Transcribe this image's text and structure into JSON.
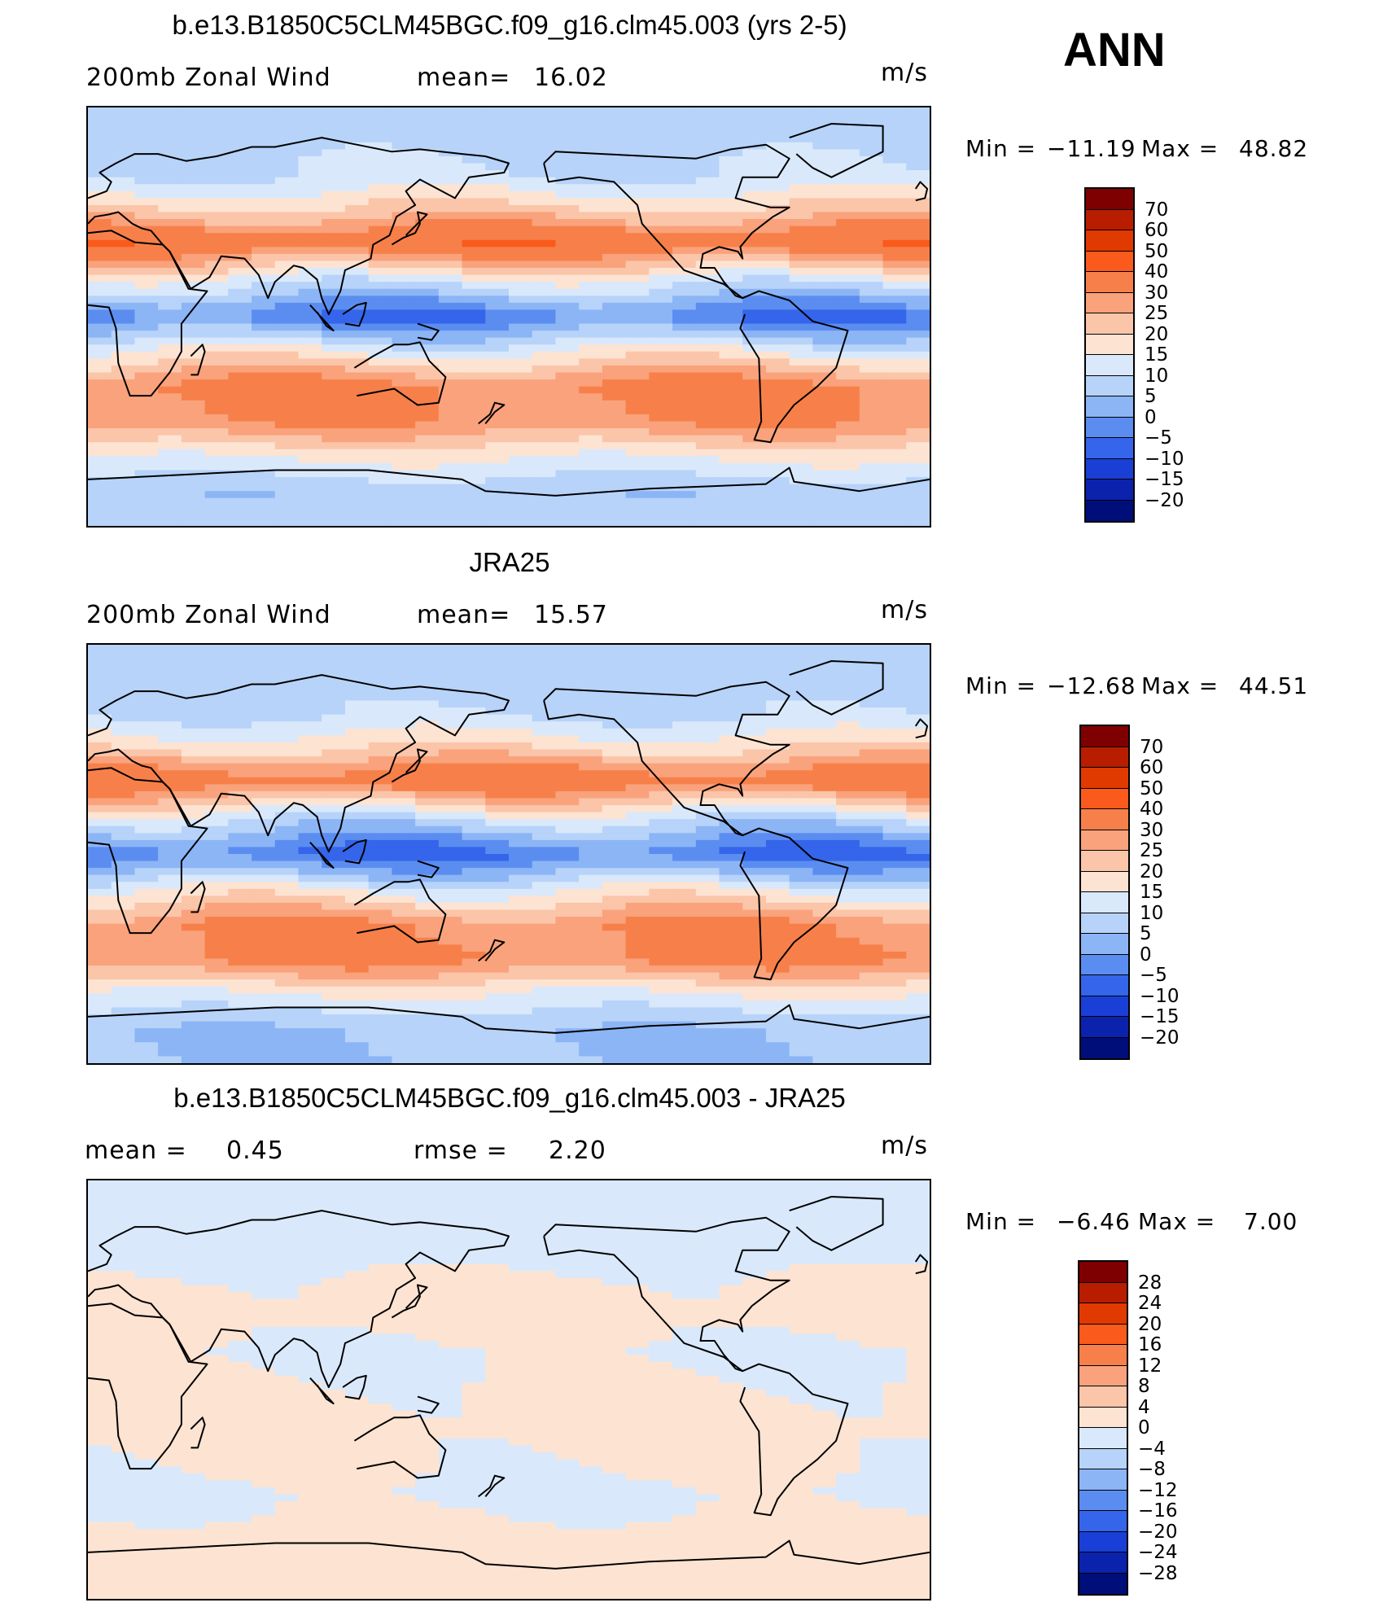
{
  "header": {
    "season": "ANN"
  },
  "panels": [
    {
      "title": "b.e13.B1850C5CLM45BGC.f09_g16.clm45.003 (yrs 2-5)",
      "left_label": "200mb Zonal Wind",
      "mid_label": "mean=",
      "mid_value": "16.02",
      "units": "m/s",
      "min_label": "Min =",
      "min_value": "−11.19",
      "max_label": "Max =",
      "max_value": "48.82",
      "type": "abs"
    },
    {
      "title": "JRA25",
      "left_label": "200mb Zonal Wind",
      "mid_label": "mean=",
      "mid_value": "15.57",
      "units": "m/s",
      "min_label": "Min =",
      "min_value": "−12.68",
      "max_label": "Max =",
      "max_value": "44.51",
      "type": "abs"
    },
    {
      "title": "b.e13.B1850C5CLM45BGC.f09_g16.clm45.003 - JRA25",
      "left_label": "mean =",
      "left_value": "0.45",
      "mid_label": "rmse =",
      "mid_value": "2.20",
      "units": "m/s",
      "min_label": "Min =",
      "min_value": "−6.46",
      "max_label": "Max =",
      "max_value": "7.00",
      "type": "diff"
    }
  ],
  "colorbars": {
    "abs": {
      "labels": [
        "70",
        "60",
        "50",
        "40",
        "30",
        "25",
        "20",
        "15",
        "10",
        "5",
        "0",
        "−5",
        "−10",
        "−15",
        "−20"
      ],
      "colors": [
        "#7f0000",
        "#b81d00",
        "#e03a00",
        "#fa5a1c",
        "#f7804a",
        "#f9a27c",
        "#fbc5a9",
        "#fde3d2",
        "#d9e9fb",
        "#b7d3f9",
        "#8cb5f6",
        "#5b8df1",
        "#3465ea",
        "#1a3fd6",
        "#0b22ad",
        "#000e7a"
      ]
    },
    "diff": {
      "labels": [
        "28",
        "24",
        "20",
        "16",
        "12",
        "8",
        "4",
        "0",
        "−4",
        "−8",
        "−12",
        "−16",
        "−20",
        "−24",
        "−28"
      ],
      "colors": [
        "#7f0000",
        "#b81d00",
        "#e03a00",
        "#fa5a1c",
        "#f7804a",
        "#f9a27c",
        "#fbc5a9",
        "#fde3d2",
        "#d9e9fb",
        "#b7d3f9",
        "#8cb5f6",
        "#5b8df1",
        "#3465ea",
        "#1a3fd6",
        "#0b22ad",
        "#000e7a"
      ]
    }
  },
  "chart_data": [
    {
      "type": "heatmap",
      "field": "200mb Zonal Wind",
      "units": "m/s",
      "mean": 16.02,
      "min": -11.19,
      "max": 48.82,
      "contour_levels": [
        -20,
        -15,
        -10,
        -5,
        0,
        5,
        10,
        15,
        20,
        25,
        30,
        40,
        50,
        60,
        70
      ],
      "zonal_bands": [
        {
          "lat": 80,
          "value": 8
        },
        {
          "lat": 60,
          "value": 10
        },
        {
          "lat": 45,
          "value": 22
        },
        {
          "lat": 32,
          "value": 38
        },
        {
          "lat": 15,
          "value": 12
        },
        {
          "lat": 0,
          "value": -5
        },
        {
          "lat": -15,
          "value": 15
        },
        {
          "lat": -30,
          "value": 32
        },
        {
          "lat": -45,
          "value": 30
        },
        {
          "lat": -60,
          "value": 16
        },
        {
          "lat": -75,
          "value": 6
        }
      ]
    },
    {
      "type": "heatmap",
      "field": "200mb Zonal Wind",
      "units": "m/s",
      "mean": 15.57,
      "min": -12.68,
      "max": 44.51,
      "contour_levels": [
        -20,
        -15,
        -10,
        -5,
        0,
        5,
        10,
        15,
        20,
        25,
        30,
        40,
        50,
        60,
        70
      ],
      "zonal_bands": [
        {
          "lat": 80,
          "value": 6
        },
        {
          "lat": 60,
          "value": 9
        },
        {
          "lat": 45,
          "value": 20
        },
        {
          "lat": 32,
          "value": 36
        },
        {
          "lat": 15,
          "value": 10
        },
        {
          "lat": 0,
          "value": -6
        },
        {
          "lat": -15,
          "value": 14
        },
        {
          "lat": -30,
          "value": 30
        },
        {
          "lat": -45,
          "value": 32
        },
        {
          "lat": -60,
          "value": 15
        },
        {
          "lat": -75,
          "value": 5
        }
      ]
    },
    {
      "type": "heatmap",
      "field": "difference",
      "units": "m/s",
      "mean": 0.45,
      "rmse": 2.2,
      "min": -6.46,
      "max": 7.0,
      "contour_levels": [
        -28,
        -24,
        -20,
        -16,
        -12,
        -8,
        -4,
        0,
        4,
        8,
        12,
        16,
        20,
        24,
        28
      ],
      "zonal_bands": [
        {
          "lat": 80,
          "value": -1
        },
        {
          "lat": 60,
          "value": -2
        },
        {
          "lat": 45,
          "value": 1
        },
        {
          "lat": 30,
          "value": 2
        },
        {
          "lat": 15,
          "value": -1
        },
        {
          "lat": 0,
          "value": 1
        },
        {
          "lat": -15,
          "value": 2
        },
        {
          "lat": -30,
          "value": 1
        },
        {
          "lat": -45,
          "value": -1
        },
        {
          "lat": -60,
          "value": 1
        },
        {
          "lat": -75,
          "value": 2
        }
      ]
    }
  ]
}
